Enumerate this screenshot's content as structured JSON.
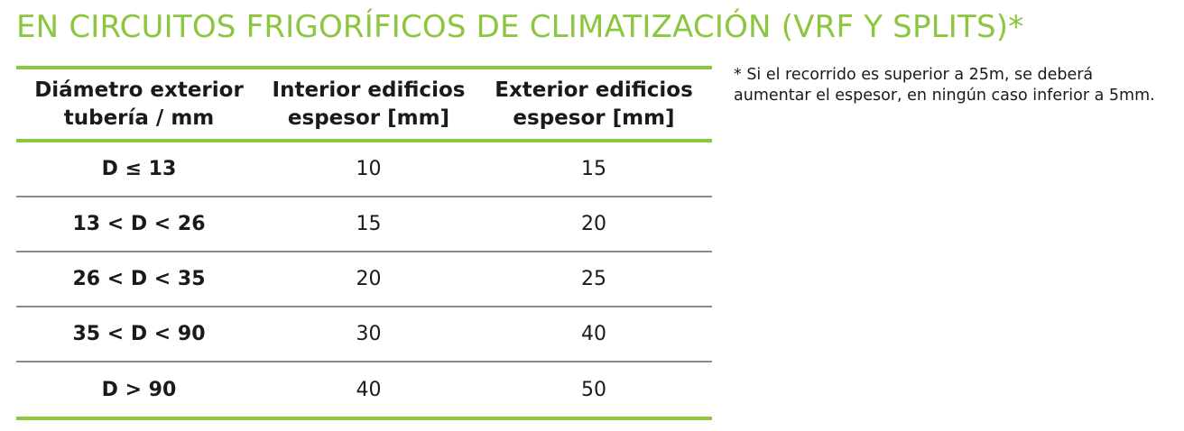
{
  "title": "EN CIRCUITOS FRIGORÍFICOS DE CLIMATIZACIÓN (VRF Y SPLITS)*",
  "table": {
    "headers": [
      [
        "Diámetro exterior",
        "tubería / mm"
      ],
      [
        "Interior edificios",
        "espesor [mm]"
      ],
      [
        "Exterior edificios",
        "espesor [mm]"
      ]
    ],
    "rows": [
      [
        "D ≤ 13",
        "10",
        "15"
      ],
      [
        "13 < D < 26",
        "15",
        "20"
      ],
      [
        "26 < D < 35",
        "20",
        "25"
      ],
      [
        "35 < D < 90",
        "30",
        "40"
      ],
      [
        "D > 90",
        "40",
        "50"
      ]
    ]
  },
  "note": {
    "line1": "* Si el recorrido es superior a 25m, se deberá",
    "line2": "aumentar el espesor, en ningún caso inferior a 5mm."
  },
  "colors": {
    "accent": "#8cc63f",
    "divider": "#8a8a8a"
  }
}
